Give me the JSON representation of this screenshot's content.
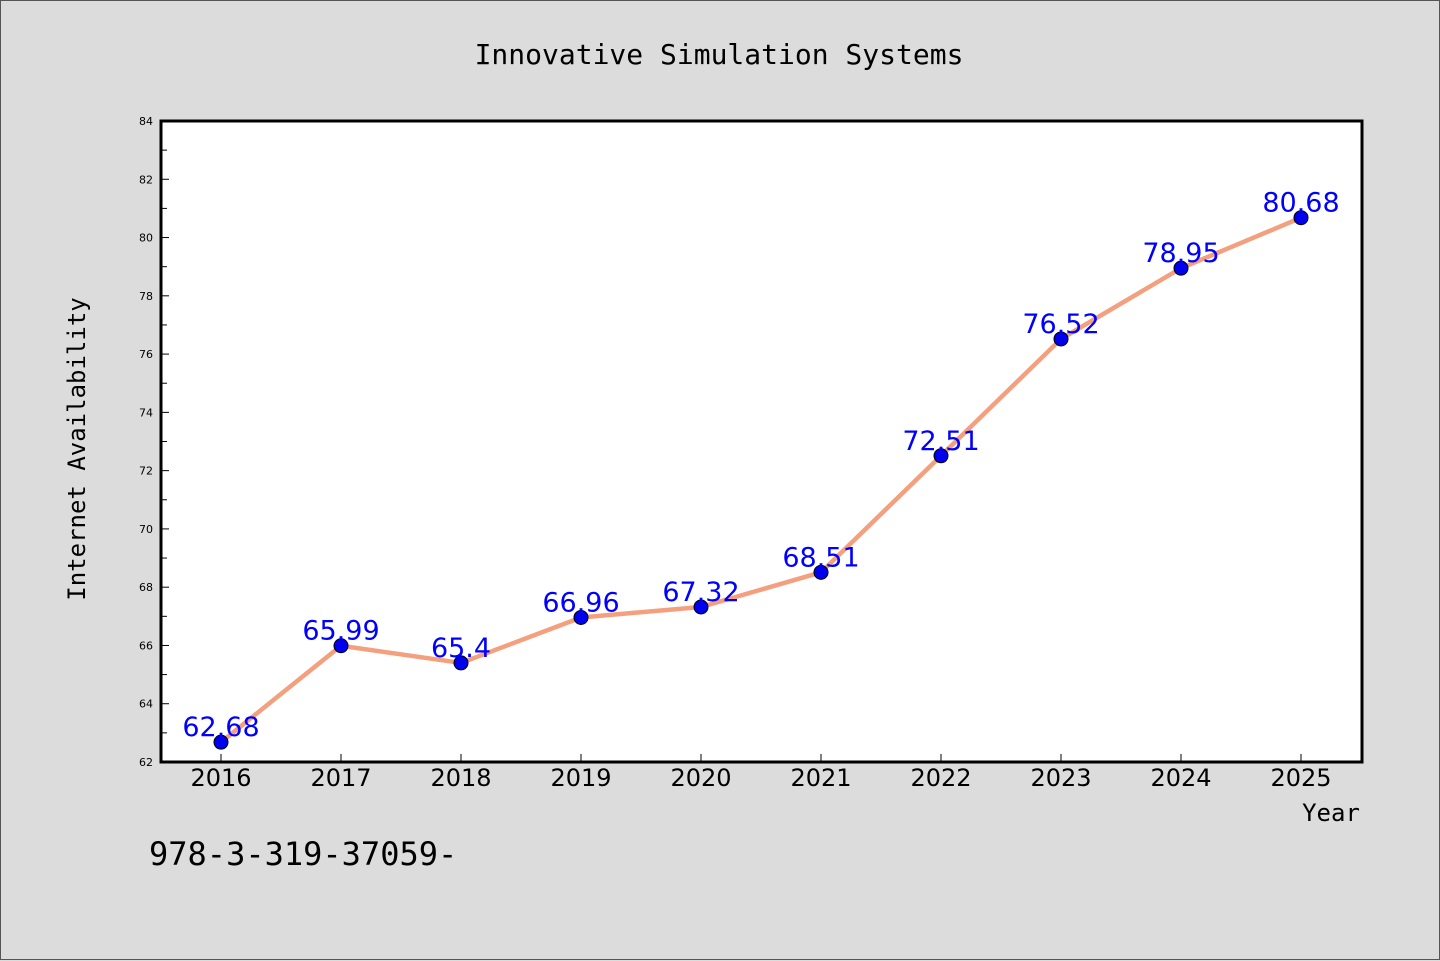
{
  "chart_data": {
    "type": "line",
    "title": "Innovative Simulation Systems",
    "xlabel": "Year",
    "ylabel": "Internet Availability",
    "categories": [
      "2016",
      "2017",
      "2018",
      "2019",
      "2020",
      "2021",
      "2022",
      "2023",
      "2024",
      "2025"
    ],
    "series": [
      {
        "values": [
          62.68,
          65.99,
          65.4,
          66.96,
          67.32,
          68.51,
          72.51,
          76.52,
          78.95,
          80.68
        ],
        "data_labels": [
          "62.68",
          "65.99",
          "65.4",
          "66.96",
          "67.32",
          "68.51",
          "72.51",
          "76.52",
          "78.95",
          "80.68"
        ]
      }
    ],
    "ylim": [
      62,
      84
    ],
    "yticks": [
      62,
      64,
      66,
      68,
      70,
      72,
      74,
      76,
      78,
      80,
      82,
      84
    ],
    "grid": false,
    "line_color": "#f4a07f",
    "marker_color": "#0000ee",
    "label_color": "#0000ff"
  },
  "footnote": "978-3-319-37059-"
}
